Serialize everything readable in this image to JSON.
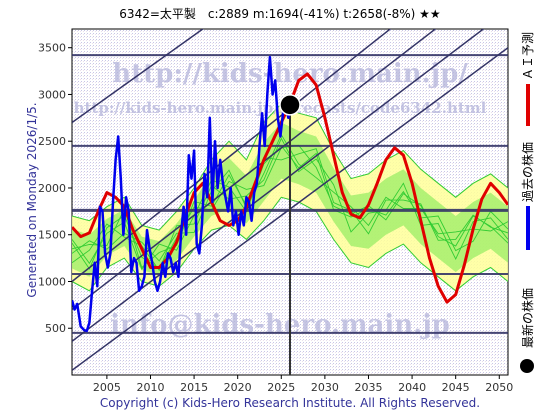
{
  "header": {
    "text": "6342=太平製　c:2889  m:1694(-41%)  t:2658(-8%)  ★★"
  },
  "side_left": "Generated on Monday 2026/1/5.",
  "footer": "Copyright (c) Kids-Hero Research Institute. All Rights Reserved.",
  "watermarks": {
    "url1": "http://kids-hero.main.jp/",
    "url2": "http://kids-hero.main.jp/forecasts/code6342.html",
    "email": "info@kids-hero.main.jp"
  },
  "legend": {
    "forecast": "ＡＩ予測",
    "past": "過去の株価",
    "latest": "最新の株価"
  },
  "colors": {
    "forecast": "#e00000",
    "past": "#0000ee",
    "band_green": "#33cc33",
    "band_yellow": "#ffff99",
    "band_fill": "#99ee66",
    "grid": "#333366",
    "axis_text": "#333333",
    "marker": "#000000"
  },
  "chart_data": {
    "type": "line",
    "title": "6342=太平製　c:2889  m:1694(-41%)  t:2658(-8%)  ★★",
    "xlim": [
      2001,
      2051
    ],
    "ylim": [
      0,
      3700
    ],
    "x_ticks": [
      2005,
      2010,
      2015,
      2020,
      2025,
      2030,
      2035,
      2040,
      2045,
      2050
    ],
    "y_ticks": [
      500,
      1000,
      1500,
      2000,
      2500,
      3000,
      3500
    ],
    "horizontal_levels": [
      450,
      1080,
      1760,
      2450,
      3420
    ],
    "current_marker": {
      "x": 2026.0,
      "y": 2889
    },
    "current_vline_x": 2026.0,
    "trend_lines": [
      {
        "x0": 2001,
        "y0": 50,
        "x1": 2051,
        "y1": 3500
      },
      {
        "x0": 2001,
        "y0": 360,
        "x1": 2051,
        "y1": 3900
      },
      {
        "x0": 2001,
        "y0": 700,
        "x1": 2051,
        "y1": 4300
      },
      {
        "x0": 2001,
        "y0": 1000,
        "x1": 2051,
        "y1": 4700
      },
      {
        "x0": 2001,
        "y0": 2700,
        "x1": 2031,
        "y1": 4700
      }
    ],
    "band_upper": {
      "x": [
        2001,
        2003,
        2005,
        2007,
        2009,
        2011,
        2013,
        2015,
        2017,
        2019,
        2021,
        2023,
        2025,
        2027,
        2029,
        2031,
        2033,
        2035,
        2037,
        2039,
        2041,
        2043,
        2045,
        2047,
        2049,
        2051
      ],
      "y": [
        1700,
        1650,
        1800,
        1900,
        1600,
        1550,
        1750,
        2000,
        2300,
        2500,
        2300,
        2700,
        2900,
        2800,
        2750,
        2400,
        2100,
        2150,
        2300,
        2400,
        2200,
        2050,
        1900,
        2050,
        2150,
        2000
      ]
    },
    "band_lower": {
      "x": [
        2001,
        2003,
        2005,
        2007,
        2009,
        2011,
        2013,
        2015,
        2017,
        2019,
        2021,
        2023,
        2025,
        2027,
        2029,
        2031,
        2033,
        2035,
        2037,
        2039,
        2041,
        2043,
        2045,
        2047,
        2049,
        2051
      ],
      "y": [
        1000,
        900,
        1150,
        1250,
        1000,
        950,
        1100,
        1350,
        1550,
        1600,
        1450,
        1650,
        1900,
        1850,
        1750,
        1450,
        1200,
        1150,
        1300,
        1400,
        1200,
        1050,
        900,
        1050,
        1150,
        1000
      ]
    },
    "series": [
      {
        "name": "過去の株価",
        "x": [
          2001.0,
          2001.3,
          2001.6,
          2002.0,
          2002.4,
          2002.7,
          2003.0,
          2003.3,
          2003.6,
          2003.9,
          2004.2,
          2004.5,
          2004.8,
          2005.1,
          2005.4,
          2005.7,
          2006.0,
          2006.3,
          2006.6,
          2006.9,
          2007.2,
          2007.5,
          2007.8,
          2008.1,
          2008.4,
          2008.7,
          2009.0,
          2009.3,
          2009.6,
          2009.9,
          2010.2,
          2010.5,
          2010.8,
          2011.1,
          2011.4,
          2011.7,
          2012.0,
          2012.3,
          2012.6,
          2012.9,
          2013.2,
          2013.5,
          2013.8,
          2014.1,
          2014.4,
          2014.7,
          2015.0,
          2015.3,
          2015.6,
          2015.9,
          2016.2,
          2016.5,
          2016.8,
          2017.1,
          2017.4,
          2017.7,
          2018.0,
          2018.3,
          2018.6,
          2018.9,
          2019.2,
          2019.5,
          2019.8,
          2020.1,
          2020.4,
          2020.7,
          2021.0,
          2021.3,
          2021.6,
          2021.9,
          2022.2,
          2022.5,
          2022.8,
          2023.1,
          2023.4,
          2023.7,
          2024.0,
          2024.3,
          2024.6,
          2024.9,
          2025.2,
          2025.5,
          2025.8,
          2026.0
        ],
        "y": [
          800,
          700,
          760,
          520,
          480,
          470,
          560,
          900,
          1200,
          950,
          1800,
          1750,
          1300,
          1150,
          1300,
          1850,
          2300,
          2550,
          2100,
          1500,
          1900,
          1750,
          1100,
          1250,
          1200,
          900,
          950,
          1050,
          1550,
          1350,
          1200,
          1000,
          900,
          1000,
          1200,
          1050,
          1300,
          1250,
          1100,
          1200,
          1050,
          1500,
          1800,
          1500,
          2350,
          2100,
          2400,
          1400,
          1300,
          1600,
          2150,
          1900,
          2750,
          1850,
          2500,
          2000,
          2300,
          2050,
          1900,
          1750,
          2000,
          1600,
          1750,
          1500,
          1750,
          1600,
          1900,
          1850,
          1650,
          1950,
          2050,
          2450,
          2800,
          2450,
          3000,
          3400,
          3000,
          3150,
          2750,
          2550,
          2800,
          2900,
          2750,
          2889
        ]
      },
      {
        "name": "ＡＩ予測",
        "x": [
          2001.0,
          2002.0,
          2003.0,
          2004.0,
          2005.0,
          2006.0,
          2007.0,
          2008.0,
          2009.0,
          2010.0,
          2011.0,
          2012.0,
          2013.0,
          2014.0,
          2015.0,
          2016.0,
          2017.0,
          2018.0,
          2019.0,
          2020.0,
          2021.0,
          2022.0,
          2023.0,
          2024.0,
          2025.0,
          2026.0,
          2027.0,
          2028.0,
          2029.0,
          2030.0,
          2031.0,
          2032.0,
          2033.0,
          2034.0,
          2035.0,
          2036.0,
          2037.0,
          2038.0,
          2039.0,
          2040.0,
          2041.0,
          2042.0,
          2043.0,
          2044.0,
          2045.0,
          2046.0,
          2047.0,
          2048.0,
          2049.0,
          2050.0,
          2051.0
        ],
        "y": [
          1580,
          1480,
          1520,
          1750,
          1950,
          1900,
          1800,
          1550,
          1350,
          1150,
          1150,
          1250,
          1420,
          1700,
          1950,
          2050,
          1850,
          1650,
          1600,
          1650,
          1800,
          2050,
          2300,
          2500,
          2700,
          2900,
          3150,
          3220,
          3100,
          2750,
          2350,
          1950,
          1720,
          1680,
          1820,
          2050,
          2300,
          2430,
          2350,
          2050,
          1650,
          1250,
          950,
          780,
          860,
          1180,
          1560,
          1880,
          2050,
          1950,
          1820
        ]
      }
    ],
    "band_series": [
      {
        "y_offsets": [
          0,
          120,
          -90,
          200,
          -150,
          60,
          -40,
          180,
          -120,
          90,
          -60,
          150,
          -100,
          40,
          170,
          -80,
          110,
          -140,
          70,
          -30,
          130,
          -110,
          50,
          160,
          -70,
          20
        ]
      },
      {
        "y_offsets": [
          -150,
          60,
          140,
          -100,
          80,
          -130,
          170,
          -60,
          100,
          -170,
          40,
          -90,
          130,
          -150,
          60,
          110,
          -120,
          80,
          -40,
          150,
          -100,
          70,
          -160,
          90,
          30,
          -50
        ]
      },
      {
        "y_offsets": [
          100,
          -80,
          40,
          60,
          -170,
          150,
          -90,
          30,
          160,
          -40,
          -130,
          80,
          50,
          -110,
          120,
          -160,
          40,
          130,
          -90,
          60,
          -20,
          150,
          -70,
          -120,
          100,
          60
        ]
      },
      {
        "y_offsets": [
          -50,
          160,
          -130,
          -60,
          120,
          -30,
          90,
          -150,
          40,
          140,
          -90,
          -20,
          170,
          -70,
          -140,
          30,
          150,
          -50,
          100,
          -120,
          80,
          -40,
          130,
          10,
          -110,
          140
        ]
      },
      {
        "y_offsets": [
          60,
          -140,
          100,
          130,
          -40,
          -110,
          40,
          120,
          -160,
          20,
          110,
          -150,
          30,
          130,
          -30,
          -120,
          70,
          160,
          -140,
          40,
          110,
          -70,
          -20,
          150,
          -60,
          -90
        ]
      }
    ]
  }
}
